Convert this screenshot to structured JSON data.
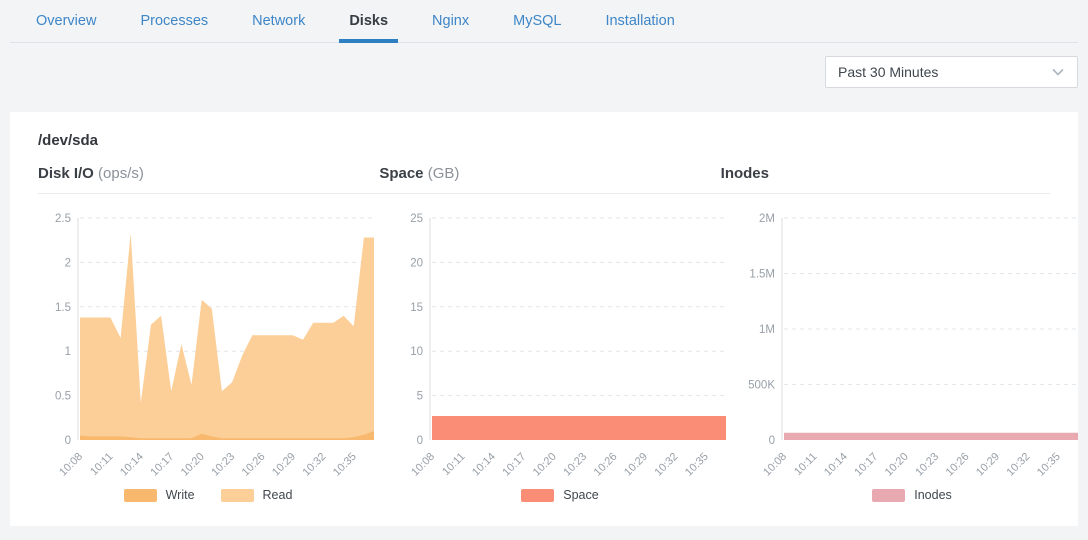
{
  "tabs": {
    "items": [
      {
        "label": "Overview",
        "active": false
      },
      {
        "label": "Processes",
        "active": false
      },
      {
        "label": "Network",
        "active": false
      },
      {
        "label": "Disks",
        "active": true
      },
      {
        "label": "Nginx",
        "active": false
      },
      {
        "label": "MySQL",
        "active": false
      },
      {
        "label": "Installation",
        "active": false
      }
    ]
  },
  "toolbar": {
    "time_range": {
      "value": "Past 30 Minutes"
    }
  },
  "card": {
    "title": "/dev/sda"
  },
  "colors": {
    "page_background": "#F2F4F6",
    "tab_link": "#3E86C7",
    "tab_active_underline": "#2E7FC2",
    "grid_line": "#E3E6EA",
    "axis_line": "#D9DDE2",
    "tick_text": "#98A0A7"
  },
  "chart_data": [
    {
      "type": "area",
      "title": "Disk I/O",
      "unit": "(ops/s)",
      "ylim": [
        0,
        2.5
      ],
      "yticks": [
        {
          "v": 0,
          "label": "0"
        },
        {
          "v": 0.5,
          "label": "0.5"
        },
        {
          "v": 1,
          "label": "1"
        },
        {
          "v": 1.5,
          "label": "1.5"
        },
        {
          "v": 2,
          "label": "2"
        },
        {
          "v": 2.5,
          "label": "2.5"
        }
      ],
      "x_tick_labels": [
        "10:08",
        "10:11",
        "10:14",
        "10:17",
        "10:20",
        "10:23",
        "10:26",
        "10:29",
        "10:32",
        "10:35"
      ],
      "x_tick_every": 3,
      "grid": "dashed",
      "legend_position": "bottom",
      "series": [
        {
          "name": "Write",
          "color": "#F8B86D",
          "values": [
            0.05,
            0.04,
            0.04,
            0.04,
            0.04,
            0.03,
            0.02,
            0.02,
            0.02,
            0.02,
            0.02,
            0.02,
            0.07,
            0.04,
            0.02,
            0.02,
            0.02,
            0.02,
            0.02,
            0.02,
            0.02,
            0.02,
            0.02,
            0.02,
            0.02,
            0.02,
            0.02,
            0.03,
            0.06,
            0.1
          ]
        },
        {
          "name": "Read",
          "color": "#FBCF97",
          "values": [
            1.38,
            1.38,
            1.38,
            1.38,
            1.15,
            2.33,
            0.42,
            1.3,
            1.4,
            0.55,
            1.08,
            0.62,
            1.58,
            1.48,
            0.55,
            0.65,
            0.95,
            1.18,
            1.18,
            1.18,
            1.18,
            1.18,
            1.13,
            1.32,
            1.32,
            1.32,
            1.4,
            1.28,
            2.28,
            2.28
          ]
        }
      ]
    },
    {
      "type": "area",
      "title": "Space",
      "unit": "(GB)",
      "ylim": [
        0,
        25
      ],
      "yticks": [
        {
          "v": 0,
          "label": "0"
        },
        {
          "v": 5,
          "label": "5"
        },
        {
          "v": 10,
          "label": "10"
        },
        {
          "v": 15,
          "label": "15"
        },
        {
          "v": 20,
          "label": "20"
        },
        {
          "v": 25,
          "label": "25"
        }
      ],
      "x_tick_labels": [
        "10:08",
        "10:11",
        "10:14",
        "10:17",
        "10:20",
        "10:23",
        "10:26",
        "10:29",
        "10:32",
        "10:35"
      ],
      "x_tick_every": 3,
      "grid": "dashed",
      "legend_position": "bottom",
      "series": [
        {
          "name": "Space",
          "color": "#F98D76",
          "values": [
            2.7,
            2.7,
            2.7,
            2.7,
            2.7,
            2.7,
            2.7,
            2.7,
            2.7,
            2.7,
            2.7,
            2.7,
            2.7,
            2.7,
            2.7,
            2.7,
            2.7,
            2.7,
            2.7,
            2.7,
            2.7,
            2.7,
            2.7,
            2.7,
            2.7,
            2.7,
            2.7,
            2.7,
            2.7,
            2.7
          ]
        }
      ]
    },
    {
      "type": "area",
      "title": "Inodes",
      "unit": "",
      "ylim": [
        0,
        2000000
      ],
      "yticks": [
        {
          "v": 0,
          "label": "0"
        },
        {
          "v": 500000,
          "label": "500K"
        },
        {
          "v": 1000000,
          "label": "1M"
        },
        {
          "v": 1500000,
          "label": "1.5M"
        },
        {
          "v": 2000000,
          "label": "2M"
        }
      ],
      "x_tick_labels": [
        "10:08",
        "10:11",
        "10:14",
        "10:17",
        "10:20",
        "10:23",
        "10:26",
        "10:29",
        "10:32",
        "10:35"
      ],
      "x_tick_every": 3,
      "grid": "dashed",
      "legend_position": "bottom",
      "series": [
        {
          "name": "Inodes",
          "color": "#E8A9B0",
          "values": [
            65000,
            65000,
            65000,
            65000,
            65000,
            65000,
            65000,
            65000,
            65000,
            65000,
            65000,
            65000,
            65000,
            65000,
            65000,
            65000,
            65000,
            65000,
            65000,
            65000,
            65000,
            65000,
            65000,
            65000,
            65000,
            65000,
            65000,
            65000,
            65000,
            65000
          ]
        }
      ]
    }
  ]
}
